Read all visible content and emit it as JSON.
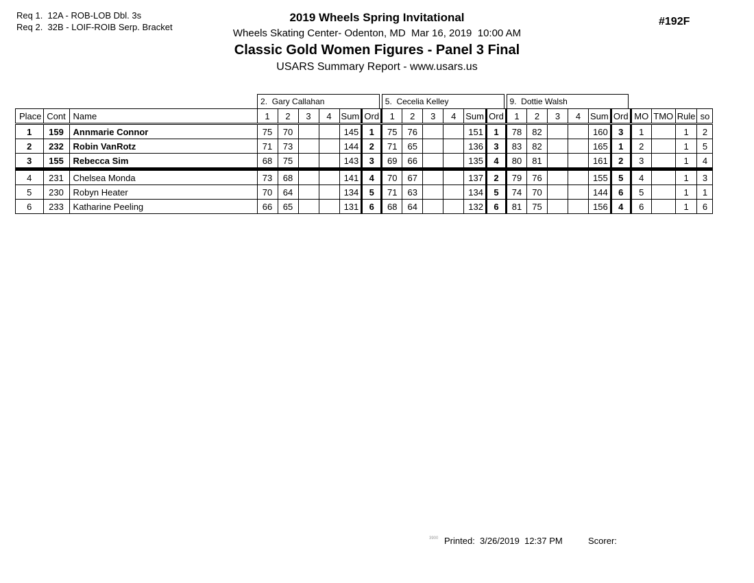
{
  "header": {
    "req1": "Req 1.  12A - ROB-LOB Dbl. 3s",
    "req2": "Req 2.  32B - LOIF-ROIB Serp. Bracket",
    "title": "2019 Wheels Spring Invitational",
    "venue_line": "Wheels Skating Center- Odenton, MD  Mar 16, 2019  10:00 AM",
    "event_title": "Classic Gold Women Figures - Panel 3 Final",
    "report_line": "USARS Summary Report - www.usars.us",
    "event_number": "#192F"
  },
  "table": {
    "left_headers": [
      "Place",
      "Cont",
      "Name"
    ],
    "judges": [
      "2.  Gary Callahan",
      "5.  Cecelia Kelley",
      "9.  Dottie Walsh"
    ],
    "score_headers": [
      "1",
      "2",
      "3",
      "4",
      "Sum",
      "Ord"
    ],
    "right_headers": [
      "MO",
      "TMO",
      "Rule",
      "so"
    ],
    "separator_before_row": 3,
    "rows": [
      {
        "place": "1",
        "cont": "159",
        "name": "Annmarie Connor",
        "bold": true,
        "judges": [
          [
            "75",
            "70",
            "",
            "",
            "145",
            "1"
          ],
          [
            "75",
            "76",
            "",
            "",
            "151",
            "1"
          ],
          [
            "78",
            "82",
            "",
            "",
            "160",
            "3"
          ]
        ],
        "mo": "1",
        "tmo": "",
        "rule": "1",
        "so": "2"
      },
      {
        "place": "2",
        "cont": "232",
        "name": "Robin VanRotz",
        "bold": true,
        "judges": [
          [
            "71",
            "73",
            "",
            "",
            "144",
            "2"
          ],
          [
            "71",
            "65",
            "",
            "",
            "136",
            "3"
          ],
          [
            "83",
            "82",
            "",
            "",
            "165",
            "1"
          ]
        ],
        "mo": "2",
        "tmo": "",
        "rule": "1",
        "so": "5"
      },
      {
        "place": "3",
        "cont": "155",
        "name": "Rebecca Sim",
        "bold": true,
        "judges": [
          [
            "68",
            "75",
            "",
            "",
            "143",
            "3"
          ],
          [
            "69",
            "66",
            "",
            "",
            "135",
            "4"
          ],
          [
            "80",
            "81",
            "",
            "",
            "161",
            "2"
          ]
        ],
        "mo": "3",
        "tmo": "",
        "rule": "1",
        "so": "4"
      },
      {
        "place": "4",
        "cont": "231",
        "name": "Chelsea Monda",
        "bold": false,
        "judges": [
          [
            "73",
            "68",
            "",
            "",
            "141",
            "4"
          ],
          [
            "70",
            "67",
            "",
            "",
            "137",
            "2"
          ],
          [
            "79",
            "76",
            "",
            "",
            "155",
            "5"
          ]
        ],
        "mo": "4",
        "tmo": "",
        "rule": "1",
        "so": "3"
      },
      {
        "place": "5",
        "cont": "230",
        "name": "Robyn Heater",
        "bold": false,
        "judges": [
          [
            "70",
            "64",
            "",
            "",
            "134",
            "5"
          ],
          [
            "71",
            "63",
            "",
            "",
            "134",
            "5"
          ],
          [
            "74",
            "70",
            "",
            "",
            "144",
            "6"
          ]
        ],
        "mo": "5",
        "tmo": "",
        "rule": "1",
        "so": "1"
      },
      {
        "place": "6",
        "cont": "233",
        "name": "Katharine Peeling",
        "bold": false,
        "judges": [
          [
            "66",
            "65",
            "",
            "",
            "131",
            "6"
          ],
          [
            "68",
            "64",
            "",
            "",
            "132",
            "6"
          ],
          [
            "81",
            "75",
            "",
            "",
            "156",
            "4"
          ]
        ],
        "mo": "6",
        "tmo": "",
        "rule": "1",
        "so": "6"
      }
    ]
  },
  "footer": {
    "code": "3900",
    "printed": "Printed:  3/26/2019  12:37 PM",
    "scorer": "Scorer:"
  }
}
